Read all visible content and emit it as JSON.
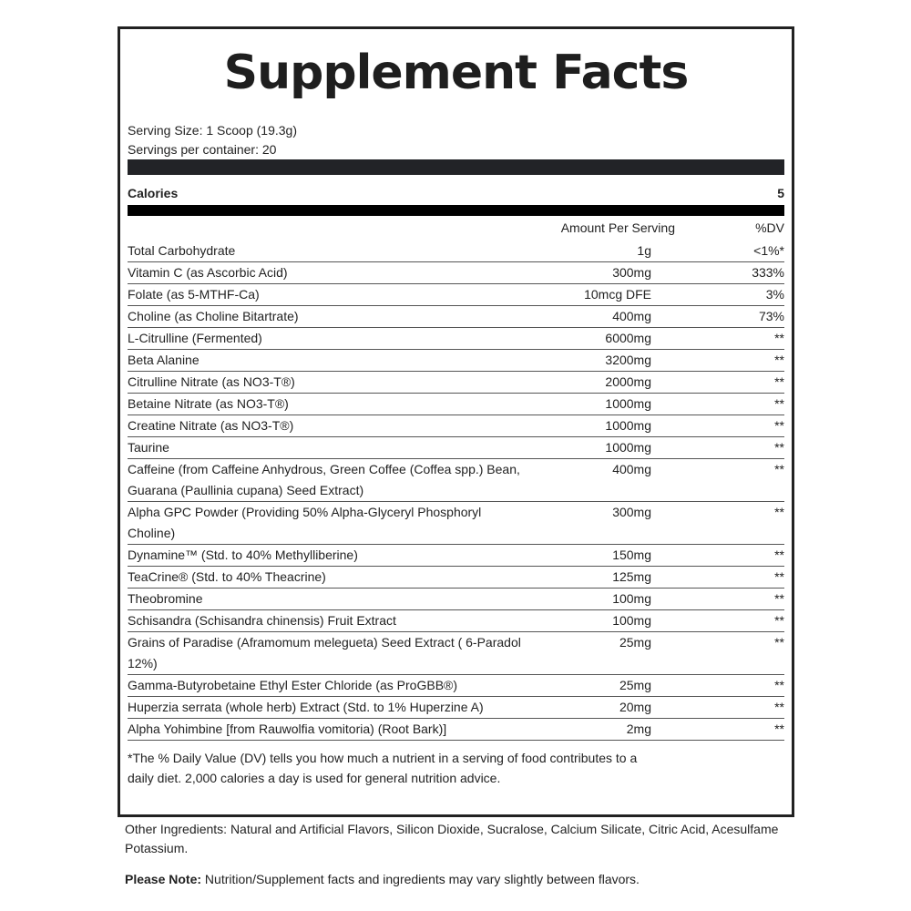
{
  "title": "Supplement Facts",
  "serving_size": "Serving Size: 1 Scoop (19.3g)",
  "servings_per_container": "Servings per container: 20",
  "calories": {
    "label": "Calories",
    "value": "5"
  },
  "header": {
    "amount": "Amount Per Serving",
    "dv": "%DV"
  },
  "rows": [
    {
      "name": "Total Carbohydrate",
      "amount": "1g",
      "dv": "<1%*"
    },
    {
      "name": "Vitamin C (as Ascorbic Acid)",
      "amount": "300mg",
      "dv": "333%"
    },
    {
      "name": "Folate (as 5-MTHF-Ca)",
      "amount": "10mcg DFE",
      "dv": "3%"
    },
    {
      "name": "Choline (as Choline Bitartrate)",
      "amount": "400mg",
      "dv": "73%"
    },
    {
      "name": "L-Citrulline (Fermented)",
      "amount": "6000mg",
      "dv": "**"
    },
    {
      "name": "Beta Alanine",
      "amount": "3200mg",
      "dv": "**"
    },
    {
      "name": "Citrulline Nitrate (as NO3-T®)",
      "amount": "2000mg",
      "dv": "**"
    },
    {
      "name": "Betaine Nitrate (as NO3-T®)",
      "amount": "1000mg",
      "dv": "**"
    },
    {
      "name": "Creatine Nitrate (as NO3-T®)",
      "amount": "1000mg",
      "dv": "**"
    },
    {
      "name": "Taurine",
      "amount": "1000mg",
      "dv": "**"
    },
    {
      "name": "Caffeine (from Caffeine Anhydrous, Green Coffee (Coffea spp.) Bean, Guarana (Paullinia cupana) Seed Extract)",
      "amount": "400mg",
      "dv": "**"
    },
    {
      "name": "Alpha GPC Powder (Providing 50% Alpha-Glyceryl Phosphoryl Choline)",
      "amount": "300mg",
      "dv": "**"
    },
    {
      "name": "Dynamine™ (Std. to 40% Methylliberine)",
      "amount": "150mg",
      "dv": "**"
    },
    {
      "name": "TeaCrine® (Std. to 40% Theacrine)",
      "amount": "125mg",
      "dv": "**"
    },
    {
      "name": "Theobromine",
      "amount": "100mg",
      "dv": "**"
    },
    {
      "name": "Schisandra (Schisandra chinensis) Fruit Extract",
      "amount": "100mg",
      "dv": "**"
    },
    {
      "name": "Grains of Paradise (Aframomum melegueta) Seed Extract ( 6-Paradol 12%)",
      "amount": "25mg",
      "dv": "**"
    },
    {
      "name": "Gamma-Butyrobetaine Ethyl Ester Chloride (as ProGBB®)",
      "amount": "25mg",
      "dv": "**"
    },
    {
      "name": "Huperzia serrata (whole herb) Extract (Std. to 1% Huperzine A)",
      "amount": "20mg",
      "dv": "**"
    },
    {
      "name": "Alpha Yohimbine [from Rauwolfia vomitoria) (Root Bark)]",
      "amount": "2mg",
      "dv": "**"
    }
  ],
  "footnote": "*The % Daily Value (DV) tells you how much a nutrient in a serving of food contributes to a daily diet. 2,000 calories a day is used for general nutrition advice.",
  "other_ingredients": "Other Ingredients: Natural and Artificial Flavors, Silicon Dioxide, Sucralose, Calcium Silicate, Citric Acid, Acesulfame Potassium.",
  "note": {
    "label": "Please Note:",
    "text": " Nutrition/Supplement facts and ingredients may vary slightly between flavors."
  }
}
